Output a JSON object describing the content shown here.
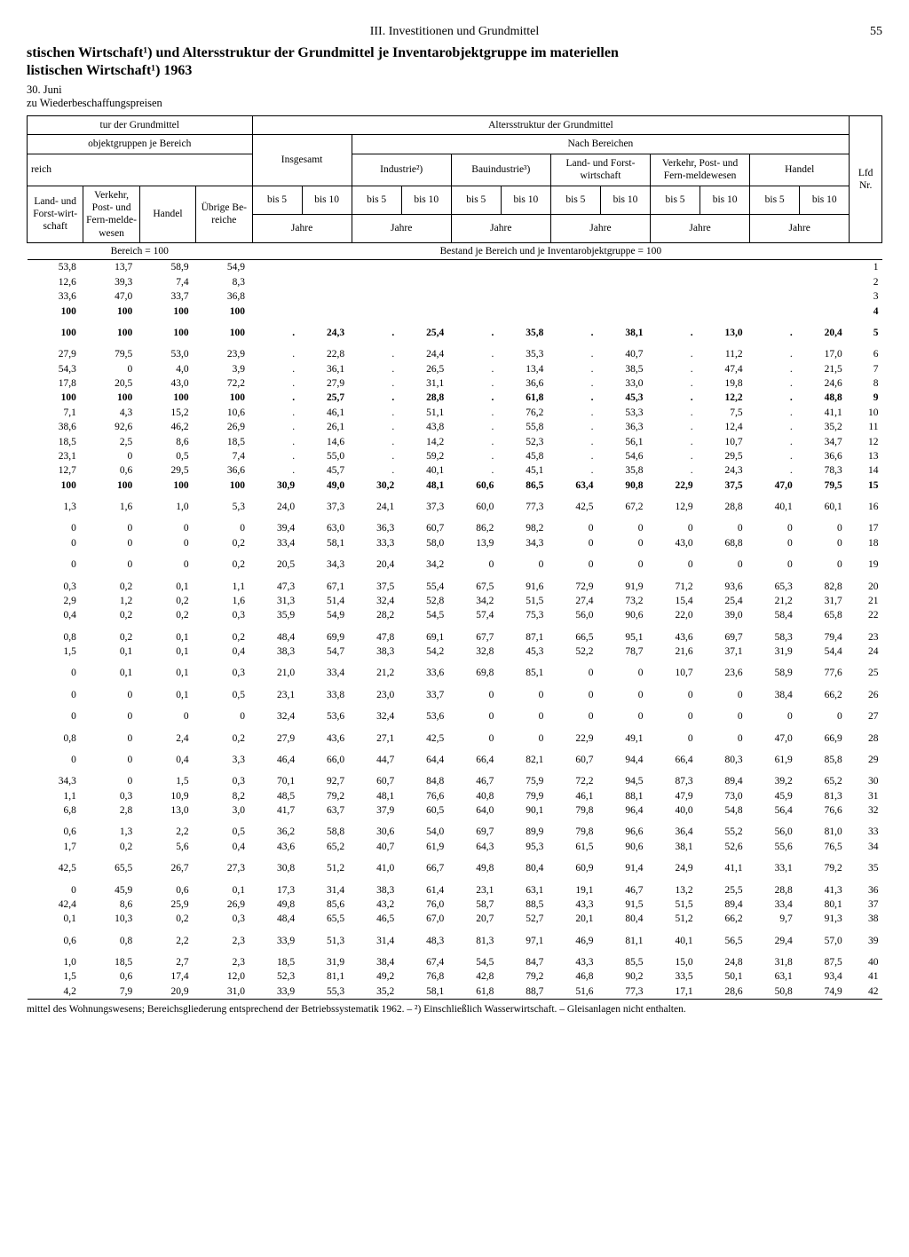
{
  "header": {
    "section": "III. Investitionen und Grundmittel",
    "page": "55"
  },
  "title_l1": "stischen Wirtschaft¹) und Altersstruktur der Grundmittel je Inventarobjektgruppe im materiellen",
  "title_l2": "listischen Wirtschaft¹) 1963",
  "subnote_l1": "30. Juni",
  "subnote_l2": "zu Wiederbeschaffungspreisen",
  "thead": {
    "r1c1": "tur der Grundmittel",
    "r1c2": "Altersstruktur der Grundmittel",
    "r2c1": "objektgruppen je Bereich",
    "r2c2": "Nach Bereichen",
    "r3c1": "reich",
    "col_land": "Land- und Forst-wirt-schaft",
    "col_verkehr": "Verkehr, Post- und Fern-melde-wesen",
    "col_handel": "Handel",
    "col_ubrige": "Übrige Be-reiche",
    "col_insg": "Insgesamt",
    "col_ind": "Industrie²)",
    "col_bau": "Bauindustrie³)",
    "col_landf": "Land- und Forst-wirtschaft",
    "col_vpf": "Verkehr, Post- und Fern-meldewesen",
    "col_hand2": "Handel",
    "col_lfd": "Lfd Nr.",
    "sub_bis5": "bis 5",
    "sub_bis10": "bis 10",
    "sub_jahre": "Jahre"
  },
  "section1": "Bereich = 100",
  "section2": "Bestand je Bereich und je Inventarobjektgruppe = 100",
  "rows": [
    {
      "c": [
        "53,8",
        "13,7",
        "58,9",
        "54,9",
        "",
        "",
        "",
        "",
        "",
        "",
        "",
        "",
        "",
        "",
        "",
        "",
        "1"
      ],
      "b": false
    },
    {
      "c": [
        "12,6",
        "39,3",
        "7,4",
        "8,3",
        "",
        "",
        "",
        "",
        "",
        "",
        "",
        "",
        "",
        "",
        "",
        "",
        "2"
      ],
      "b": false
    },
    {
      "c": [
        "33,6",
        "47,0",
        "33,7",
        "36,8",
        "",
        "",
        "",
        "",
        "",
        "",
        "",
        "",
        "",
        "",
        "",
        "",
        "3"
      ],
      "b": false
    },
    {
      "c": [
        "100",
        "100",
        "100",
        "100",
        "",
        "",
        "",
        "",
        "",
        "",
        "",
        "",
        "",
        "",
        "",
        "",
        "4"
      ],
      "b": true
    },
    {
      "spacer": true
    },
    {
      "c": [
        "100",
        "100",
        "100",
        "100",
        ".",
        "24,3",
        ".",
        "25,4",
        ".",
        "35,8",
        ".",
        "38,1",
        ".",
        "13,0",
        ".",
        "20,4",
        "5"
      ],
      "b": true
    },
    {
      "spacer": true
    },
    {
      "c": [
        "27,9",
        "79,5",
        "53,0",
        "23,9",
        ".",
        "22,8",
        ".",
        "24,4",
        ".",
        "35,3",
        ".",
        "40,7",
        ".",
        "11,2",
        ".",
        "17,0",
        "6"
      ],
      "b": false
    },
    {
      "c": [
        "54,3",
        "0",
        "4,0",
        "3,9",
        ".",
        "36,1",
        ".",
        "26,5",
        ".",
        "13,4",
        ".",
        "38,5",
        ".",
        "47,4",
        ".",
        "21,5",
        "7"
      ],
      "b": false
    },
    {
      "c": [
        "17,8",
        "20,5",
        "43,0",
        "72,2",
        ".",
        "27,9",
        ".",
        "31,1",
        ".",
        "36,6",
        ".",
        "33,0",
        ".",
        "19,8",
        ".",
        "24,6",
        "8"
      ],
      "b": false
    },
    {
      "c": [
        "100",
        "100",
        "100",
        "100",
        ".",
        "25,7",
        ".",
        "28,8",
        ".",
        "61,8",
        ".",
        "45,3",
        ".",
        "12,2",
        ".",
        "48,8",
        "9"
      ],
      "b": true
    },
    {
      "c": [
        "7,1",
        "4,3",
        "15,2",
        "10,6",
        ".",
        "46,1",
        ".",
        "51,1",
        ".",
        "76,2",
        ".",
        "53,3",
        ".",
        "7,5",
        ".",
        "41,1",
        "10"
      ],
      "b": false
    },
    {
      "c": [
        "38,6",
        "92,6",
        "46,2",
        "26,9",
        ".",
        "26,1",
        ".",
        "43,8",
        ".",
        "55,8",
        ".",
        "36,3",
        ".",
        "12,4",
        ".",
        "35,2",
        "11"
      ],
      "b": false
    },
    {
      "c": [
        "18,5",
        "2,5",
        "8,6",
        "18,5",
        ".",
        "14,6",
        ".",
        "14,2",
        ".",
        "52,3",
        ".",
        "56,1",
        ".",
        "10,7",
        ".",
        "34,7",
        "12"
      ],
      "b": false
    },
    {
      "c": [
        "23,1",
        "0",
        "0,5",
        "7,4",
        ".",
        "55,0",
        ".",
        "59,2",
        ".",
        "45,8",
        ".",
        "54,6",
        ".",
        "29,5",
        ".",
        "36,6",
        "13"
      ],
      "b": false
    },
    {
      "c": [
        "12,7",
        "0,6",
        "29,5",
        "36,6",
        ".",
        "45,7",
        ".",
        "40,1",
        ".",
        "45,1",
        ".",
        "35,8",
        ".",
        "24,3",
        ".",
        "78,3",
        "14"
      ],
      "b": false
    },
    {
      "c": [
        "100",
        "100",
        "100",
        "100",
        "30,9",
        "49,0",
        "30,2",
        "48,1",
        "60,6",
        "86,5",
        "63,4",
        "90,8",
        "22,9",
        "37,5",
        "47,0",
        "79,5",
        "15"
      ],
      "b": true
    },
    {
      "spacer": true
    },
    {
      "c": [
        "1,3",
        "1,6",
        "1,0",
        "5,3",
        "24,0",
        "37,3",
        "24,1",
        "37,3",
        "60,0",
        "77,3",
        "42,5",
        "67,2",
        "12,9",
        "28,8",
        "40,1",
        "60,1",
        "16"
      ],
      "b": false
    },
    {
      "spacer": true
    },
    {
      "c": [
        "0",
        "0",
        "0",
        "0",
        "39,4",
        "63,0",
        "36,3",
        "60,7",
        "86,2",
        "98,2",
        "0",
        "0",
        "0",
        "0",
        "0",
        "0",
        "17"
      ],
      "b": false
    },
    {
      "c": [
        "0",
        "0",
        "0",
        "0,2",
        "33,4",
        "58,1",
        "33,3",
        "58,0",
        "13,9",
        "34,3",
        "0",
        "0",
        "43,0",
        "68,8",
        "0",
        "0",
        "18"
      ],
      "b": false
    },
    {
      "spacer": true
    },
    {
      "c": [
        "0",
        "0",
        "0",
        "0,2",
        "20,5",
        "34,3",
        "20,4",
        "34,2",
        "0",
        "0",
        "0",
        "0",
        "0",
        "0",
        "0",
        "0",
        "19"
      ],
      "b": false
    },
    {
      "spacer": true
    },
    {
      "c": [
        "0,3",
        "0,2",
        "0,1",
        "1,1",
        "47,3",
        "67,1",
        "37,5",
        "55,4",
        "67,5",
        "91,6",
        "72,9",
        "91,9",
        "71,2",
        "93,6",
        "65,3",
        "82,8",
        "20"
      ],
      "b": false
    },
    {
      "c": [
        "2,9",
        "1,2",
        "0,2",
        "1,6",
        "31,3",
        "51,4",
        "32,4",
        "52,8",
        "34,2",
        "51,5",
        "27,4",
        "73,2",
        "15,4",
        "25,4",
        "21,2",
        "31,7",
        "21"
      ],
      "b": false
    },
    {
      "c": [
        "0,4",
        "0,2",
        "0,2",
        "0,3",
        "35,9",
        "54,9",
        "28,2",
        "54,5",
        "57,4",
        "75,3",
        "56,0",
        "90,6",
        "22,0",
        "39,0",
        "58,4",
        "65,8",
        "22"
      ],
      "b": false
    },
    {
      "spacer": true
    },
    {
      "c": [
        "0,8",
        "0,2",
        "0,1",
        "0,2",
        "48,4",
        "69,9",
        "47,8",
        "69,1",
        "67,7",
        "87,1",
        "66,5",
        "95,1",
        "43,6",
        "69,7",
        "58,3",
        "79,4",
        "23"
      ],
      "b": false
    },
    {
      "c": [
        "1,5",
        "0,1",
        "0,1",
        "0,4",
        "38,3",
        "54,7",
        "38,3",
        "54,2",
        "32,8",
        "45,3",
        "52,2",
        "78,7",
        "21,6",
        "37,1",
        "31,9",
        "54,4",
        "24"
      ],
      "b": false
    },
    {
      "spacer": true
    },
    {
      "c": [
        "0",
        "0,1",
        "0,1",
        "0,3",
        "21,0",
        "33,4",
        "21,2",
        "33,6",
        "69,8",
        "85,1",
        "0",
        "0",
        "10,7",
        "23,6",
        "58,9",
        "77,6",
        "25"
      ],
      "b": false
    },
    {
      "spacer": true
    },
    {
      "c": [
        "0",
        "0",
        "0,1",
        "0,5",
        "23,1",
        "33,8",
        "23,0",
        "33,7",
        "0",
        "0",
        "0",
        "0",
        "0",
        "0",
        "38,4",
        "66,2",
        "26"
      ],
      "b": false
    },
    {
      "spacer": true
    },
    {
      "c": [
        "0",
        "0",
        "0",
        "0",
        "32,4",
        "53,6",
        "32,4",
        "53,6",
        "0",
        "0",
        "0",
        "0",
        "0",
        "0",
        "0",
        "0",
        "27"
      ],
      "b": false
    },
    {
      "spacer": true
    },
    {
      "c": [
        "0,8",
        "0",
        "2,4",
        "0,2",
        "27,9",
        "43,6",
        "27,1",
        "42,5",
        "0",
        "0",
        "22,9",
        "49,1",
        "0",
        "0",
        "47,0",
        "66,9",
        "28"
      ],
      "b": false
    },
    {
      "spacer": true
    },
    {
      "c": [
        "0",
        "0",
        "0,4",
        "3,3",
        "46,4",
        "66,0",
        "44,7",
        "64,4",
        "66,4",
        "82,1",
        "60,7",
        "94,4",
        "66,4",
        "80,3",
        "61,9",
        "85,8",
        "29"
      ],
      "b": false
    },
    {
      "spacer": true
    },
    {
      "c": [
        "34,3",
        "0",
        "1,5",
        "0,3",
        "70,1",
        "92,7",
        "60,7",
        "84,8",
        "46,7",
        "75,9",
        "72,2",
        "94,5",
        "87,3",
        "89,4",
        "39,2",
        "65,2",
        "30"
      ],
      "b": false
    },
    {
      "c": [
        "1,1",
        "0,3",
        "10,9",
        "8,2",
        "48,5",
        "79,2",
        "48,1",
        "76,6",
        "40,8",
        "79,9",
        "46,1",
        "88,1",
        "47,9",
        "73,0",
        "45,9",
        "81,3",
        "31"
      ],
      "b": false
    },
    {
      "c": [
        "6,8",
        "2,8",
        "13,0",
        "3,0",
        "41,7",
        "63,7",
        "37,9",
        "60,5",
        "64,0",
        "90,1",
        "79,8",
        "96,4",
        "40,0",
        "54,8",
        "56,4",
        "76,6",
        "32"
      ],
      "b": false
    },
    {
      "spacer": true
    },
    {
      "c": [
        "0,6",
        "1,3",
        "2,2",
        "0,5",
        "36,2",
        "58,8",
        "30,6",
        "54,0",
        "69,7",
        "89,9",
        "79,8",
        "96,6",
        "36,4",
        "55,2",
        "56,0",
        "81,0",
        "33"
      ],
      "b": false
    },
    {
      "c": [
        "1,7",
        "0,2",
        "5,6",
        "0,4",
        "43,6",
        "65,2",
        "40,7",
        "61,9",
        "64,3",
        "95,3",
        "61,5",
        "90,6",
        "38,1",
        "52,6",
        "55,6",
        "76,5",
        "34"
      ],
      "b": false
    },
    {
      "spacer": true
    },
    {
      "c": [
        "42,5",
        "65,5",
        "26,7",
        "27,3",
        "30,8",
        "51,2",
        "41,0",
        "66,7",
        "49,8",
        "80,4",
        "60,9",
        "91,4",
        "24,9",
        "41,1",
        "33,1",
        "79,2",
        "35"
      ],
      "b": false
    },
    {
      "spacer": true
    },
    {
      "c": [
        "0",
        "45,9",
        "0,6",
        "0,1",
        "17,3",
        "31,4",
        "38,3",
        "61,4",
        "23,1",
        "63,1",
        "19,1",
        "46,7",
        "13,2",
        "25,5",
        "28,8",
        "41,3",
        "36"
      ],
      "b": false
    },
    {
      "c": [
        "42,4",
        "8,6",
        "25,9",
        "26,9",
        "49,8",
        "85,6",
        "43,2",
        "76,0",
        "58,7",
        "88,5",
        "43,3",
        "91,5",
        "51,5",
        "89,4",
        "33,4",
        "80,1",
        "37"
      ],
      "b": false
    },
    {
      "c": [
        "0,1",
        "10,3",
        "0,2",
        "0,3",
        "48,4",
        "65,5",
        "46,5",
        "67,0",
        "20,7",
        "52,7",
        "20,1",
        "80,4",
        "51,2",
        "66,2",
        "9,7",
        "91,3",
        "38"
      ],
      "b": false
    },
    {
      "spacer": true
    },
    {
      "c": [
        "0,6",
        "0,8",
        "2,2",
        "2,3",
        "33,9",
        "51,3",
        "31,4",
        "48,3",
        "81,3",
        "97,1",
        "46,9",
        "81,1",
        "40,1",
        "56,5",
        "29,4",
        "57,0",
        "39"
      ],
      "b": false
    },
    {
      "spacer": true
    },
    {
      "c": [
        "1,0",
        "18,5",
        "2,7",
        "2,3",
        "18,5",
        "31,9",
        "38,4",
        "67,4",
        "54,5",
        "84,7",
        "43,3",
        "85,5",
        "15,0",
        "24,8",
        "31,8",
        "87,5",
        "40"
      ],
      "b": false
    },
    {
      "c": [
        "1,5",
        "0,6",
        "17,4",
        "12,0",
        "52,3",
        "81,1",
        "49,2",
        "76,8",
        "42,8",
        "79,2",
        "46,8",
        "90,2",
        "33,5",
        "50,1",
        "63,1",
        "93,4",
        "41"
      ],
      "b": false
    },
    {
      "c": [
        "4,2",
        "7,9",
        "20,9",
        "31,0",
        "33,9",
        "55,3",
        "35,2",
        "58,1",
        "61,8",
        "88,7",
        "51,6",
        "77,3",
        "17,1",
        "28,6",
        "50,8",
        "74,9",
        "42"
      ],
      "b": false
    }
  ],
  "footnote": "mittel des Wohnungswesens; Bereichsgliederung entsprechend der Betriebssystematik 1962. – ²) Einschließlich Wasserwirtschaft. – Gleisanlagen nicht enthalten."
}
